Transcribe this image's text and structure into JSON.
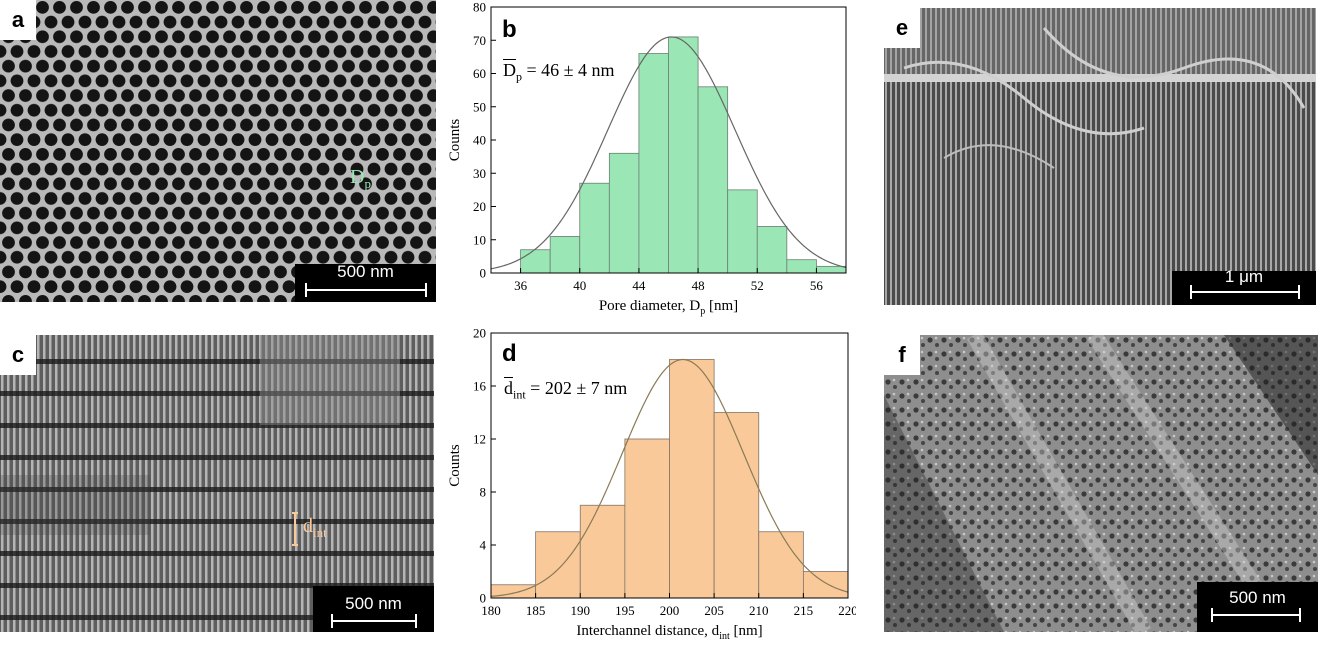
{
  "panels": {
    "a": {
      "label": "a",
      "scale": "500 nm",
      "annotation": {
        "main": "D",
        "sub": "p"
      }
    },
    "b": {
      "label": "b"
    },
    "c": {
      "label": "c",
      "scale": "500 nm",
      "annotation": {
        "main": "d",
        "sub": "int"
      }
    },
    "d": {
      "label": "d"
    },
    "e": {
      "label": "e",
      "scale": "1 μm"
    },
    "f": {
      "label": "f",
      "scale": "500 nm"
    }
  },
  "chart_data": [
    {
      "type": "bar",
      "panel": "b",
      "bin_edges": [
        36,
        38,
        40,
        42,
        44,
        46,
        48,
        50,
        52,
        54,
        56,
        58
      ],
      "values": [
        7,
        11,
        27,
        36,
        66,
        71,
        56,
        25,
        14,
        4,
        2
      ],
      "fit": {
        "type": "gaussian",
        "mean": 46.2,
        "sigma": 4.3,
        "peak": 71
      },
      "xlim": [
        34,
        58
      ],
      "ylim": [
        0,
        80
      ],
      "xticks": [
        "36",
        "40",
        "44",
        "48",
        "52",
        "56"
      ],
      "yticks": [
        "0",
        "10",
        "20",
        "30",
        "40",
        "50",
        "60",
        "70",
        "80"
      ],
      "xlabel": {
        "main": "Pore diameter, D",
        "sub": "p",
        "tail": " [nm]"
      },
      "ylabel": "Counts",
      "mean_label": {
        "bar": "D",
        "sub": "p",
        "text": " = 46 ± 4 nm"
      },
      "colors": {
        "fill": "#9ae6b4",
        "stroke": "#6b7f73",
        "fit": "#666666"
      }
    },
    {
      "type": "bar",
      "panel": "d",
      "bin_edges": [
        180,
        185,
        190,
        195,
        200,
        205,
        210,
        215,
        220
      ],
      "values": [
        1,
        5,
        7,
        12,
        18,
        14,
        5,
        2
      ],
      "fit": {
        "type": "gaussian",
        "mean": 201.5,
        "sigma": 6.8,
        "peak": 18
      },
      "xlim": [
        180,
        220
      ],
      "ylim": [
        0,
        20
      ],
      "xticks": [
        "180",
        "185",
        "190",
        "195",
        "200",
        "205",
        "210",
        "215",
        "220"
      ],
      "yticks": [
        "0",
        "4",
        "8",
        "12",
        "16",
        "20"
      ],
      "xlabel": {
        "main": "Interchannel distance, d",
        "sub": "int",
        "tail": " [nm]"
      },
      "ylabel": "Counts",
      "mean_label": {
        "bar": "d",
        "sub": "int",
        "text": " = 202 ± 7 nm"
      },
      "colors": {
        "fill": "#f9c999",
        "stroke": "#7f7366",
        "fit": "#8a7a55"
      }
    }
  ]
}
